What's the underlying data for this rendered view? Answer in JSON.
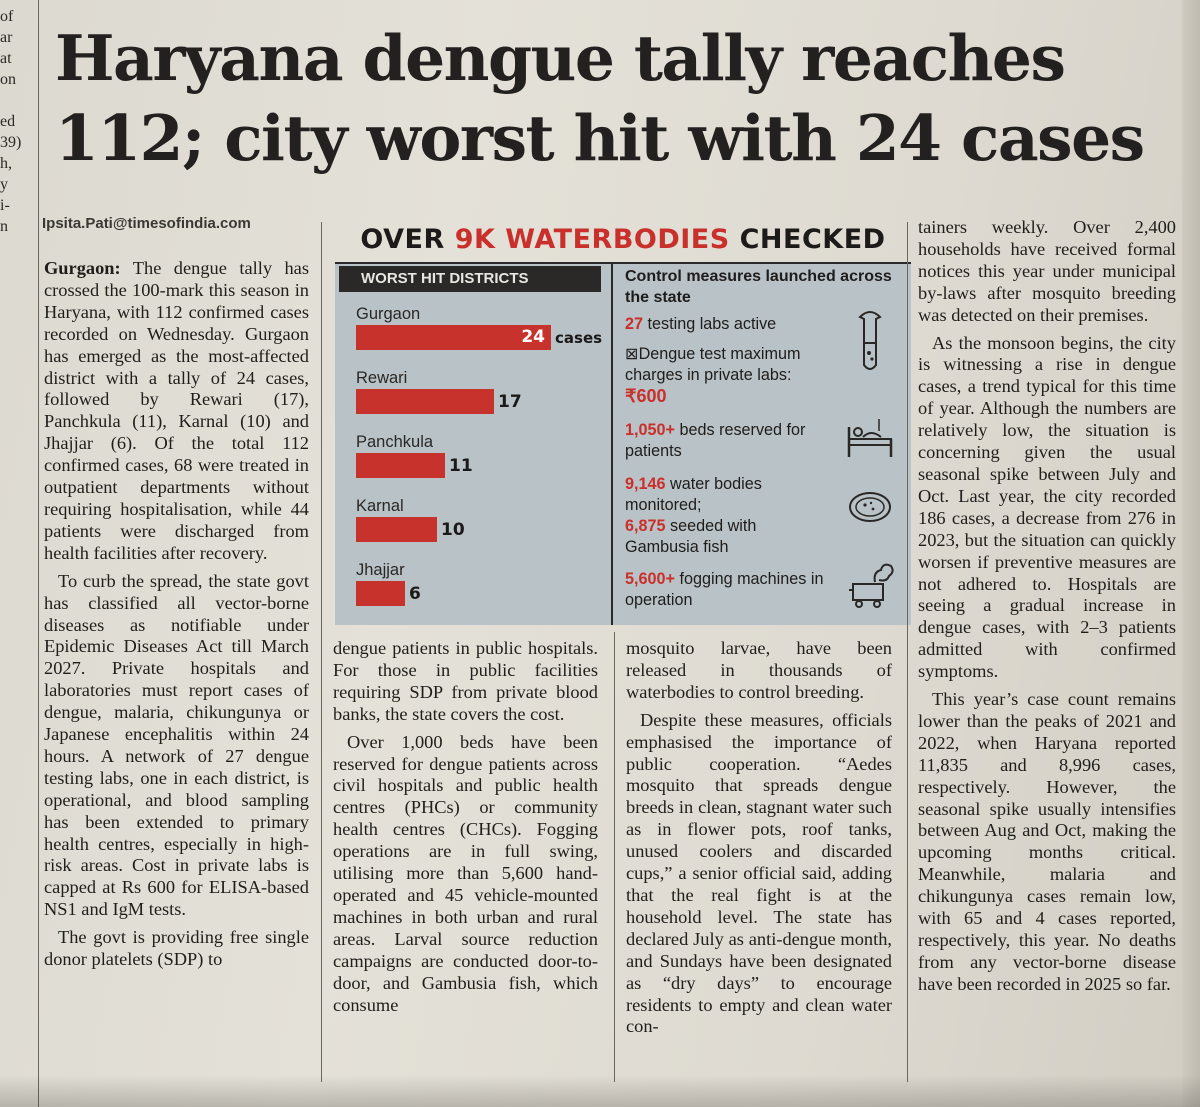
{
  "edge_fragments": [
    "of",
    "ar",
    "at",
    "on",
    "",
    "ed",
    "39)",
    "h,",
    "y",
    "i-",
    "n"
  ],
  "headline": {
    "line1": "Haryana dengue tally reaches",
    "line2": "112; city worst hit with 24 cases"
  },
  "byline": "Ipsita.Pati@timesofindia.com",
  "col1": {
    "dateline": "Gurgaon:",
    "p1": "The dengue tally has crossed the 100-mark this season in Haryana, with 112 confirmed cases recorded on Wednesday. Gurgaon has emerged as the most-affected district with a tally of 24 cases, followed by Rewari (17), Panchkula (11), Karnal (10) and Jhajjar (6). Of the total 112 confirmed cases, 68 were treated in outpatient departments without requiring hospitalisation, while 44 patients were discharged from health facilities after recovery.",
    "p2": "To curb the spread, the state govt has classified all vector-borne diseases as notifiable under Epidemic Diseases Act till March 2027. Private hospitals and laboratories must report cases of dengue, malaria, chikungunya or Japanese encephalitis within 24 hours. A network of 27 dengue testing labs, one in each district, is operational, and blood sampling has been extended to primary health centres, especially in high-risk areas. Cost in private labs is capped at Rs 600 for ELISA-based NS1 and IgM tests.",
    "p3": "The govt is providing free single donor platelets (SDP) to"
  },
  "col2": {
    "p1": "dengue patients in public hospitals. For those in public facilities requiring SDP from private blood banks, the state covers the cost.",
    "p2": "Over 1,000 beds have been reserved for dengue patients across civil hospitals and public health centres (PHCs) or community health centres (CHCs). Fogging operations are in full swing, utilising more than 5,600 hand-operated and 45 vehicle-mounted machines in both urban and rural areas. Larval source reduction campaigns are conducted door-to-door, and Gambusia fish, which consume"
  },
  "col3": {
    "p1": "mosquito larvae, have been released in thousands of waterbodies to control breeding.",
    "p2": "Despite these measures, officials emphasised the importance of public cooperation. “Aedes mosquito that spreads dengue breeds in clean, stagnant water such as in flower pots, roof tanks, unused coolers and discarded cups,” a senior official said, adding that the real fight is at the household level. The state has declared July as anti-dengue month, and Sundays have been designated as “dry days” to encourage residents to empty and clean water con-"
  },
  "col4": {
    "p1": "tainers weekly. Over 2,400 households have received formal notices this year under municipal by-laws after mosquito breeding was detected on their premises.",
    "p2": "As the monsoon begins, the city is witnessing a rise in dengue cases, a trend typical for this time of year. Although the numbers are relatively low, the situation is concerning given the usual seasonal spike between July and Oct. Last year, the city recorded 186 cases, a decrease from 276 in 2023, but the situation can quickly worsen if preventive measures are not adhered to. Hospitals are seeing a gradual increase in dengue cases, with 2–3 patients admitted with confirmed symptoms.",
    "p3": "This year’s case count remains lower than the peaks of 2021 and 2022, when Haryana reported 11,835 and 8,996 cases, respectively. However, the seasonal spike usually intensifies between Aug and Oct, making the upcoming months critical. Meanwhile, malaria and chikungunya cases remain low, with 65 and 4 cases reported, respectively, this year. No deaths from any vector-borne disease have been recorded in 2025 so far."
  },
  "infographic": {
    "title_pre": "OVER ",
    "title_red": "9K WATERBODIES",
    "title_post": " CHECKED",
    "worst_label": "WORST HIT DISTRICTS",
    "cases_label": "cases",
    "control_head": "Control measures launched across the state",
    "labs_num": "27",
    "labs_text": " testing labs active",
    "charge_text": "⊠Dengue test maximum charges in private labs:",
    "charge_num": "₹600",
    "beds_num": "1,050+",
    "beds_text": " beds reserved for patients",
    "water_num": "9,146",
    "water_text": " water bodies monitored;",
    "seeded_num": "6,875",
    "seeded_text": " seeded with Gambusia fish",
    "fog_num": "5,600+",
    "fog_text": " fogging machines in operation",
    "colors": {
      "accent": "#c8322c",
      "panel": "#b9c2c6",
      "dark": "#2b2928"
    },
    "icons": [
      "test-tube-icon",
      "hospital-bed-icon",
      "petri-dish-icon",
      "fogging-machine-icon"
    ]
  },
  "chart_data": {
    "type": "bar",
    "title": "WORST HIT DISTRICTS",
    "categories": [
      "Gurgaon",
      "Rewari",
      "Panchkula",
      "Karnal",
      "Jhajjar"
    ],
    "values": [
      24,
      17,
      11,
      10,
      6
    ],
    "xlabel": "",
    "ylabel": "",
    "orientation": "horizontal"
  }
}
